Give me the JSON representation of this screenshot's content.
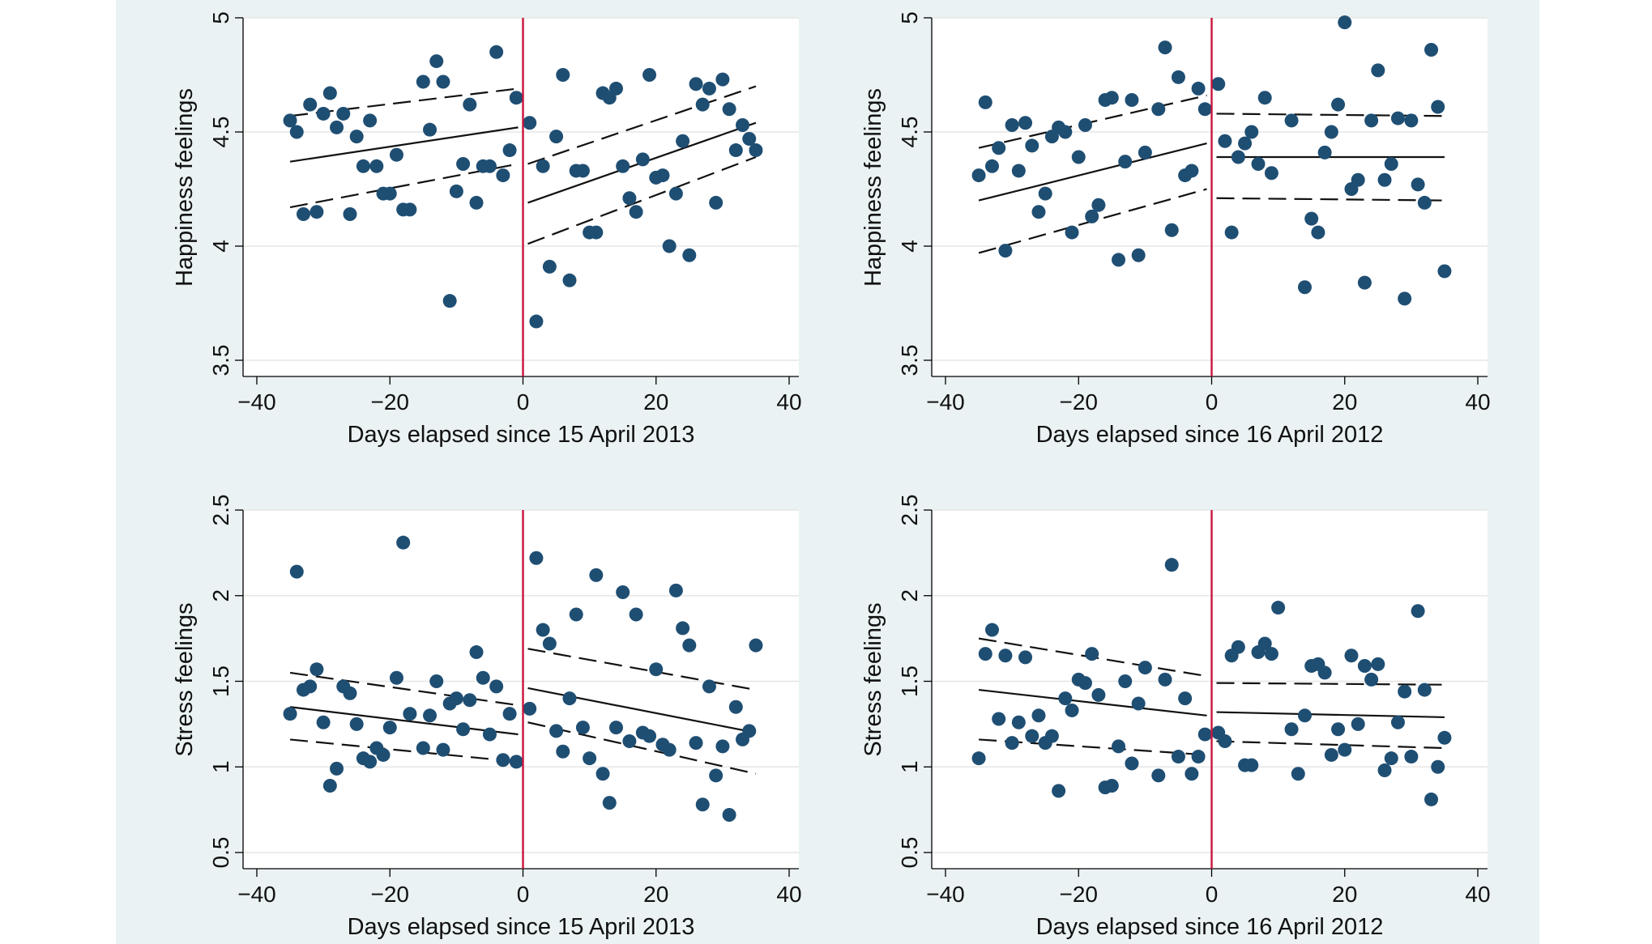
{
  "colors": {
    "background": "#eaf2f3",
    "points": "#1f4e73",
    "cutoff": "#c8143c",
    "fit_red": "#a02a3c"
  },
  "chart_data": [
    {
      "type": "scatter",
      "xlabel": "Days elapsed since 15 April 2013",
      "ylabel": "Happiness feelings",
      "xlim": [
        -40,
        40
      ],
      "ylim": [
        3.5,
        5
      ],
      "xticks": [
        "−40",
        "−20",
        "0",
        "20",
        "40"
      ],
      "xtick_values": [
        -40,
        -20,
        0,
        20,
        40
      ],
      "yticks": [
        "3.5",
        "4",
        "4.5",
        "5"
      ],
      "ytick_values": [
        3.5,
        4,
        4.5,
        5
      ],
      "cutoff_x": 0,
      "grid": true,
      "points": [
        [
          -35,
          4.55
        ],
        [
          -34,
          4.5
        ],
        [
          -33,
          4.14
        ],
        [
          -32,
          4.62
        ],
        [
          -31,
          4.15
        ],
        [
          -30,
          4.58
        ],
        [
          -29,
          4.67
        ],
        [
          -28,
          4.52
        ],
        [
          -27,
          4.58
        ],
        [
          -26,
          4.14
        ],
        [
          -25,
          4.48
        ],
        [
          -24,
          4.35
        ],
        [
          -23,
          4.55
        ],
        [
          -22,
          4.35
        ],
        [
          -21,
          4.23
        ],
        [
          -20,
          4.23
        ],
        [
          -19,
          4.4
        ],
        [
          -18,
          4.16
        ],
        [
          -17,
          4.16
        ],
        [
          -15,
          4.72
        ],
        [
          -14,
          4.51
        ],
        [
          -13,
          4.81
        ],
        [
          -12,
          4.72
        ],
        [
          -11,
          3.76
        ],
        [
          -10,
          4.24
        ],
        [
          -9,
          4.36
        ],
        [
          -8,
          4.62
        ],
        [
          -7,
          4.19
        ],
        [
          -6,
          4.35
        ],
        [
          -5,
          4.35
        ],
        [
          -4,
          4.85
        ],
        [
          -3,
          4.31
        ],
        [
          -2,
          4.42
        ],
        [
          -1,
          4.65
        ],
        [
          1,
          4.54
        ],
        [
          2,
          3.67
        ],
        [
          3,
          4.35
        ],
        [
          4,
          3.91
        ],
        [
          5,
          4.48
        ],
        [
          6,
          4.75
        ],
        [
          7,
          3.85
        ],
        [
          8,
          4.33
        ],
        [
          9,
          4.33
        ],
        [
          10,
          4.06
        ],
        [
          11,
          4.06
        ],
        [
          12,
          4.67
        ],
        [
          13,
          4.65
        ],
        [
          14,
          4.69
        ],
        [
          15,
          4.35
        ],
        [
          16,
          4.21
        ],
        [
          17,
          4.15
        ],
        [
          18,
          4.38
        ],
        [
          19,
          4.75
        ],
        [
          20,
          4.3
        ],
        [
          21,
          4.31
        ],
        [
          22,
          4.0
        ],
        [
          23,
          4.23
        ],
        [
          24,
          4.46
        ],
        [
          25,
          3.96
        ],
        [
          26,
          4.71
        ],
        [
          27,
          4.62
        ],
        [
          28,
          4.69
        ],
        [
          29,
          4.19
        ],
        [
          30,
          4.73
        ],
        [
          31,
          4.6
        ],
        [
          32,
          4.42
        ],
        [
          33,
          4.53
        ],
        [
          34,
          4.47
        ],
        [
          35,
          4.42
        ]
      ],
      "fits": [
        {
          "segment": "before",
          "x": [
            -35,
            0
          ],
          "fit": [
            4.37,
            4.52
          ],
          "lower": [
            4.17,
            4.36
          ],
          "upper": [
            4.57,
            4.69
          ]
        },
        {
          "segment": "after",
          "x": [
            0,
            35
          ],
          "fit": [
            4.19,
            4.54
          ],
          "lower": [
            4.01,
            4.39
          ],
          "upper": [
            4.36,
            4.7
          ]
        }
      ]
    },
    {
      "type": "scatter",
      "xlabel": "Days elapsed since 16 April 2012",
      "ylabel": "Happiness feelings",
      "xlim": [
        -40,
        40
      ],
      "ylim": [
        3.5,
        5
      ],
      "xticks": [
        "−40",
        "−20",
        "0",
        "20",
        "40"
      ],
      "xtick_values": [
        -40,
        -20,
        0,
        20,
        40
      ],
      "yticks": [
        "3.5",
        "4",
        "4.5",
        "5"
      ],
      "ytick_values": [
        3.5,
        4,
        4.5,
        5
      ],
      "cutoff_x": 0,
      "grid": true,
      "points": [
        [
          -35,
          4.31
        ],
        [
          -34,
          4.63
        ],
        [
          -33,
          4.35
        ],
        [
          -32,
          4.43
        ],
        [
          -31,
          3.98
        ],
        [
          -30,
          4.53
        ],
        [
          -29,
          4.33
        ],
        [
          -28,
          4.54
        ],
        [
          -27,
          4.44
        ],
        [
          -26,
          4.15
        ],
        [
          -25,
          4.23
        ],
        [
          -24,
          4.48
        ],
        [
          -23,
          4.52
        ],
        [
          -22,
          4.5
        ],
        [
          -21,
          4.06
        ],
        [
          -20,
          4.39
        ],
        [
          -19,
          4.53
        ],
        [
          -18,
          4.13
        ],
        [
          -17,
          4.18
        ],
        [
          -16,
          4.64
        ],
        [
          -15,
          4.65
        ],
        [
          -14,
          3.94
        ],
        [
          -13,
          4.37
        ],
        [
          -12,
          4.64
        ],
        [
          -11,
          3.96
        ],
        [
          -10,
          4.41
        ],
        [
          -8,
          4.6
        ],
        [
          -7,
          4.87
        ],
        [
          -6,
          4.07
        ],
        [
          -5,
          4.74
        ],
        [
          -4,
          4.31
        ],
        [
          -3,
          4.33
        ],
        [
          -2,
          4.69
        ],
        [
          -1,
          4.6
        ],
        [
          1,
          4.71
        ],
        [
          2,
          4.46
        ],
        [
          3,
          4.06
        ],
        [
          4,
          4.39
        ],
        [
          5,
          4.45
        ],
        [
          6,
          4.5
        ],
        [
          7,
          4.36
        ],
        [
          8,
          4.65
        ],
        [
          9,
          4.32
        ],
        [
          12,
          4.55
        ],
        [
          14,
          3.82
        ],
        [
          15,
          4.12
        ],
        [
          16,
          4.06
        ],
        [
          17,
          4.41
        ],
        [
          18,
          4.5
        ],
        [
          19,
          4.62
        ],
        [
          20,
          4.98
        ],
        [
          21,
          4.25
        ],
        [
          22,
          4.29
        ],
        [
          23,
          3.84
        ],
        [
          24,
          4.55
        ],
        [
          25,
          4.77
        ],
        [
          26,
          4.29
        ],
        [
          27,
          4.36
        ],
        [
          28,
          4.56
        ],
        [
          29,
          3.77
        ],
        [
          30,
          4.55
        ],
        [
          31,
          4.27
        ],
        [
          32,
          4.19
        ],
        [
          33,
          4.86
        ],
        [
          34,
          4.61
        ],
        [
          35,
          3.89
        ]
      ],
      "fits": [
        {
          "segment": "before",
          "x": [
            -35,
            0
          ],
          "fit": [
            4.2,
            4.45
          ],
          "lower": [
            3.97,
            4.25
          ],
          "upper": [
            4.43,
            4.66
          ]
        },
        {
          "segment": "after",
          "x": [
            0,
            35
          ],
          "fit": [
            4.39,
            4.39
          ],
          "lower": [
            4.21,
            4.2
          ],
          "upper": [
            4.58,
            4.57
          ],
          "fit_color": "#a02a3c"
        }
      ]
    },
    {
      "type": "scatter",
      "xlabel": "Days elapsed since 15 April 2013",
      "ylabel": "Stress  feelings",
      "xlim": [
        -40,
        40
      ],
      "ylim": [
        0.5,
        2.5
      ],
      "xticks": [
        "−40",
        "−20",
        "0",
        "20",
        "40"
      ],
      "xtick_values": [
        -40,
        -20,
        0,
        20,
        40
      ],
      "yticks": [
        "0.5",
        "1",
        "1.5",
        "2",
        "2.5"
      ],
      "ytick_values": [
        0.5,
        1,
        1.5,
        2,
        2.5
      ],
      "cutoff_x": 0,
      "grid": true,
      "points": [
        [
          -35,
          1.31
        ],
        [
          -34,
          2.14
        ],
        [
          -33,
          1.45
        ],
        [
          -32,
          1.47
        ],
        [
          -31,
          1.57
        ],
        [
          -30,
          1.26
        ],
        [
          -29,
          0.89
        ],
        [
          -28,
          0.99
        ],
        [
          -27,
          1.47
        ],
        [
          -26,
          1.43
        ],
        [
          -25,
          1.25
        ],
        [
          -24,
          1.05
        ],
        [
          -23,
          1.03
        ],
        [
          -22,
          1.11
        ],
        [
          -21,
          1.07
        ],
        [
          -20,
          1.23
        ],
        [
          -19,
          1.52
        ],
        [
          -18,
          2.31
        ],
        [
          -17,
          1.31
        ],
        [
          -15,
          1.11
        ],
        [
          -14,
          1.3
        ],
        [
          -13,
          1.5
        ],
        [
          -12,
          1.1
        ],
        [
          -11,
          1.37
        ],
        [
          -10,
          1.4
        ],
        [
          -9,
          1.22
        ],
        [
          -8,
          1.39
        ],
        [
          -7,
          1.67
        ],
        [
          -6,
          1.52
        ],
        [
          -5,
          1.19
        ],
        [
          -4,
          1.47
        ],
        [
          -3,
          1.04
        ],
        [
          -2,
          1.31
        ],
        [
          -1,
          1.03
        ],
        [
          1,
          1.34
        ],
        [
          2,
          2.22
        ],
        [
          3,
          1.8
        ],
        [
          4,
          1.72
        ],
        [
          5,
          1.21
        ],
        [
          6,
          1.09
        ],
        [
          7,
          1.4
        ],
        [
          8,
          1.89
        ],
        [
          9,
          1.23
        ],
        [
          10,
          1.05
        ],
        [
          11,
          2.12
        ],
        [
          12,
          0.96
        ],
        [
          13,
          0.79
        ],
        [
          14,
          1.23
        ],
        [
          15,
          2.02
        ],
        [
          16,
          1.15
        ],
        [
          17,
          1.89
        ],
        [
          18,
          1.2
        ],
        [
          19,
          1.18
        ],
        [
          20,
          1.57
        ],
        [
          21,
          1.13
        ],
        [
          22,
          1.1
        ],
        [
          23,
          2.03
        ],
        [
          24,
          1.81
        ],
        [
          25,
          1.71
        ],
        [
          26,
          1.14
        ],
        [
          27,
          0.78
        ],
        [
          28,
          1.47
        ],
        [
          29,
          0.95
        ],
        [
          30,
          1.12
        ],
        [
          31,
          0.72
        ],
        [
          32,
          1.35
        ],
        [
          33,
          1.16
        ],
        [
          34,
          1.21
        ],
        [
          35,
          1.71
        ]
      ],
      "fits": [
        {
          "segment": "before",
          "x": [
            -35,
            0
          ],
          "fit": [
            1.35,
            1.19
          ],
          "lower": [
            1.16,
            1.03
          ],
          "upper": [
            1.55,
            1.36
          ]
        },
        {
          "segment": "after",
          "x": [
            0,
            35
          ],
          "fit": [
            1.46,
            1.2
          ],
          "lower": [
            1.26,
            0.96
          ],
          "upper": [
            1.69,
            1.45
          ]
        }
      ]
    },
    {
      "type": "scatter",
      "xlabel": "Days elapsed since 16 April 2012",
      "ylabel": "Stress  feelings",
      "xlim": [
        -40,
        40
      ],
      "ylim": [
        0.5,
        2.5
      ],
      "xticks": [
        "−40",
        "−20",
        "0",
        "20",
        "40"
      ],
      "xtick_values": [
        -40,
        -20,
        0,
        20,
        40
      ],
      "yticks": [
        "0.5",
        "1",
        "1.5",
        "2",
        "2.5"
      ],
      "ytick_values": [
        0.5,
        1,
        1.5,
        2,
        2.5
      ],
      "cutoff_x": 0,
      "grid": true,
      "points": [
        [
          -35,
          1.05
        ],
        [
          -34,
          1.66
        ],
        [
          -33,
          1.8
        ],
        [
          -32,
          1.28
        ],
        [
          -31,
          1.65
        ],
        [
          -30,
          1.14
        ],
        [
          -29,
          1.26
        ],
        [
          -28,
          1.64
        ],
        [
          -27,
          1.18
        ],
        [
          -26,
          1.3
        ],
        [
          -25,
          1.14
        ],
        [
          -24,
          1.18
        ],
        [
          -23,
          0.86
        ],
        [
          -22,
          1.4
        ],
        [
          -21,
          1.33
        ],
        [
          -20,
          1.51
        ],
        [
          -19,
          1.49
        ],
        [
          -18,
          1.66
        ],
        [
          -17,
          1.42
        ],
        [
          -16,
          0.88
        ],
        [
          -15,
          0.89
        ],
        [
          -14,
          1.12
        ],
        [
          -13,
          1.5
        ],
        [
          -12,
          1.02
        ],
        [
          -11,
          1.37
        ],
        [
          -10,
          1.58
        ],
        [
          -8,
          0.95
        ],
        [
          -7,
          1.51
        ],
        [
          -6,
          2.18
        ],
        [
          -5,
          1.06
        ],
        [
          -4,
          1.4
        ],
        [
          -3,
          0.96
        ],
        [
          -2,
          1.06
        ],
        [
          -1,
          1.19
        ],
        [
          1,
          1.2
        ],
        [
          2,
          1.15
        ],
        [
          3,
          1.65
        ],
        [
          4,
          1.7
        ],
        [
          5,
          1.01
        ],
        [
          6,
          1.01
        ],
        [
          7,
          1.67
        ],
        [
          8,
          1.72
        ],
        [
          9,
          1.66
        ],
        [
          10,
          1.93
        ],
        [
          12,
          1.22
        ],
        [
          13,
          0.96
        ],
        [
          14,
          1.3
        ],
        [
          15,
          1.59
        ],
        [
          16,
          1.6
        ],
        [
          17,
          1.55
        ],
        [
          18,
          1.07
        ],
        [
          19,
          1.22
        ],
        [
          20,
          1.1
        ],
        [
          21,
          1.65
        ],
        [
          22,
          1.25
        ],
        [
          23,
          1.59
        ],
        [
          24,
          1.51
        ],
        [
          25,
          1.6
        ],
        [
          26,
          0.98
        ],
        [
          27,
          1.05
        ],
        [
          28,
          1.26
        ],
        [
          29,
          1.44
        ],
        [
          30,
          1.06
        ],
        [
          31,
          1.91
        ],
        [
          32,
          1.45
        ],
        [
          33,
          0.81
        ],
        [
          34,
          1.0
        ],
        [
          35,
          1.17
        ]
      ],
      "fits": [
        {
          "segment": "before",
          "x": [
            -35,
            0
          ],
          "fit": [
            1.45,
            1.3
          ],
          "lower": [
            1.16,
            1.07
          ],
          "upper": [
            1.75,
            1.53
          ]
        },
        {
          "segment": "after",
          "x": [
            0,
            35
          ],
          "fit": [
            1.32,
            1.29
          ],
          "lower": [
            1.15,
            1.11
          ],
          "upper": [
            1.49,
            1.48
          ]
        }
      ]
    }
  ]
}
